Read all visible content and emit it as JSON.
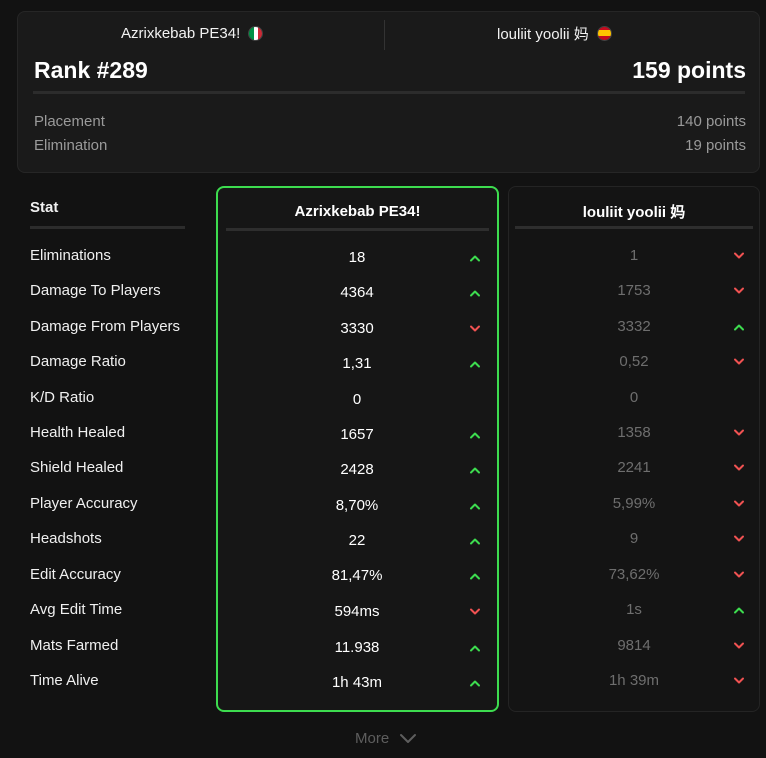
{
  "colors": {
    "up": "#3ddc4f",
    "down": "#f05252",
    "accent_border": "#3ddc4f"
  },
  "players": [
    {
      "name": "Azrixkebab PE34!",
      "flag": "italy-flag-icon"
    },
    {
      "name": "louliit yoolii 妈",
      "flag": "spain-flag-icon"
    }
  ],
  "summary": {
    "rank": "Rank #289",
    "points": "159 points",
    "breakdown": [
      {
        "label": "Placement",
        "value": "140 points"
      },
      {
        "label": "Elimination",
        "value": "19 points"
      }
    ]
  },
  "table": {
    "stat_header": "Stat",
    "rows": [
      {
        "label": "Eliminations",
        "p1": "18",
        "p1_trend": "up",
        "p2": "1",
        "p2_trend": "down"
      },
      {
        "label": "Damage To Players",
        "p1": "4364",
        "p1_trend": "up",
        "p2": "1753",
        "p2_trend": "down"
      },
      {
        "label": "Damage From Players",
        "p1": "3330",
        "p1_trend": "down",
        "p2": "3332",
        "p2_trend": "up"
      },
      {
        "label": "Damage Ratio",
        "p1": "1,31",
        "p1_trend": "up",
        "p2": "0,52",
        "p2_trend": "down"
      },
      {
        "label": "K/D Ratio",
        "p1": "0",
        "p1_trend": "none",
        "p2": "0",
        "p2_trend": "none"
      },
      {
        "label": "Health Healed",
        "p1": "1657",
        "p1_trend": "up",
        "p2": "1358",
        "p2_trend": "down"
      },
      {
        "label": "Shield Healed",
        "p1": "2428",
        "p1_trend": "up",
        "p2": "2241",
        "p2_trend": "down"
      },
      {
        "label": "Player Accuracy",
        "p1": "8,70%",
        "p1_trend": "up",
        "p2": "5,99%",
        "p2_trend": "down"
      },
      {
        "label": "Headshots",
        "p1": "22",
        "p1_trend": "up",
        "p2": "9",
        "p2_trend": "down"
      },
      {
        "label": "Edit Accuracy",
        "p1": "81,47%",
        "p1_trend": "up",
        "p2": "73,62%",
        "p2_trend": "down"
      },
      {
        "label": "Avg Edit Time",
        "p1": "594ms",
        "p1_trend": "down",
        "p2": "1s",
        "p2_trend": "up"
      },
      {
        "label": "Mats Farmed",
        "p1": "11.938",
        "p1_trend": "up",
        "p2": "9814",
        "p2_trend": "down"
      },
      {
        "label": "Time Alive",
        "p1": "1h 43m",
        "p1_trend": "up",
        "p2": "1h 39m",
        "p2_trend": "down"
      }
    ]
  },
  "more_button": {
    "label": "More",
    "icon": "chevron-down-icon"
  }
}
